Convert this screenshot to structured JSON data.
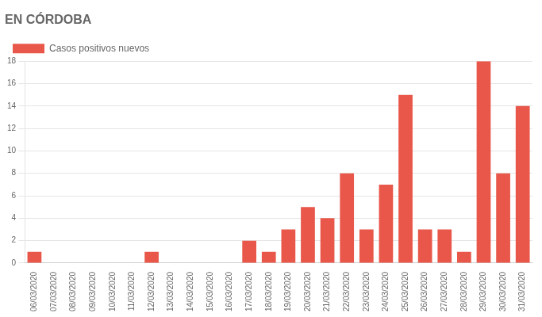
{
  "chart_data": {
    "type": "bar",
    "title": "EN CÓRDOBA",
    "categories": [
      "06/03/2020",
      "07/03/2020",
      "08/03/2020",
      "09/03/2020",
      "10/03/2020",
      "11/03/2020",
      "12/03/2020",
      "13/03/2020",
      "14/03/2020",
      "15/03/2020",
      "16/03/2020",
      "17/03/2020",
      "18/03/2020",
      "19/03/2020",
      "20/03/2020",
      "21/03/2020",
      "22/03/2020",
      "23/03/2020",
      "24/03/2020",
      "25/03/2020",
      "26/03/2020",
      "27/03/2020",
      "28/03/2020",
      "29/03/2020",
      "30/03/2020",
      "31/03/2020"
    ],
    "series": [
      {
        "name": "Casos positivos nuevos",
        "color": "#e8574a",
        "values": [
          1,
          0,
          0,
          0,
          0,
          0,
          1,
          0,
          0,
          0,
          0,
          2,
          1,
          3,
          5,
          4,
          8,
          3,
          7,
          15,
          3,
          3,
          1,
          18,
          8,
          14
        ]
      }
    ],
    "ylim": [
      0,
      18
    ],
    "yticks": [
      0,
      2,
      4,
      6,
      8,
      10,
      12,
      14,
      16,
      18
    ],
    "grid": true,
    "legend": "upper left"
  }
}
